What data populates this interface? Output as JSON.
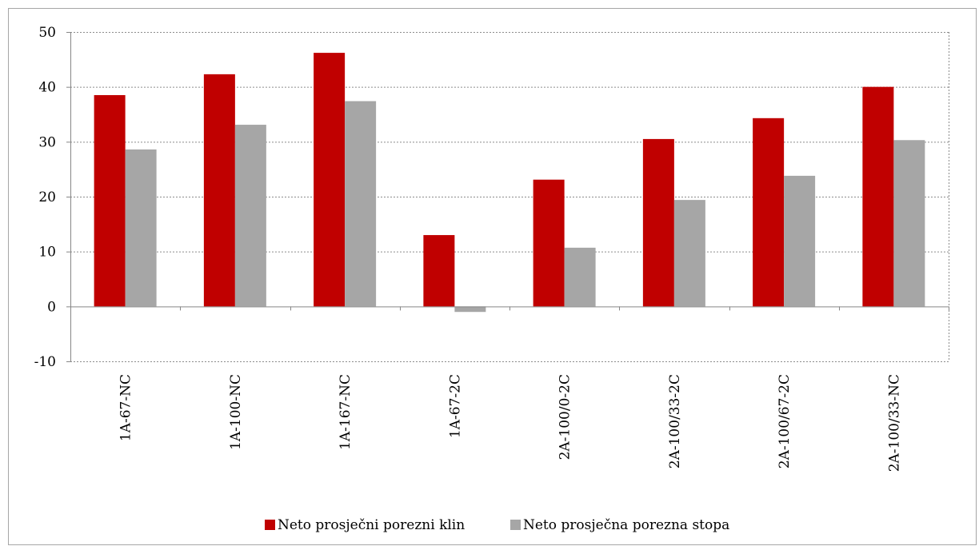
{
  "chart_data": {
    "type": "bar",
    "categories": [
      "1A-67-NC",
      "1A-100-NC",
      "1A-167-NC",
      "1A-67-2C",
      "2A-100/0-2C",
      "2A-100/33-2C",
      "2A-100/67-2C",
      "2A-100/33-NC"
    ],
    "series": [
      {
        "name": "Neto prosječni porezni klin",
        "color": "#c00000",
        "values": [
          38.5,
          42.3,
          46.2,
          13.0,
          23.1,
          30.5,
          34.3,
          40.0
        ]
      },
      {
        "name": "Neto prosječna porezna stopa",
        "color": "#a6a6a6",
        "values": [
          28.6,
          33.1,
          37.4,
          -1.0,
          10.7,
          19.4,
          23.8,
          30.3
        ]
      }
    ],
    "ylim": [
      -10,
      50
    ],
    "yticks": [
      -10,
      0,
      10,
      20,
      30,
      40,
      50
    ],
    "grid": true,
    "legend": "bottom",
    "title": "",
    "xlabel": "",
    "ylabel": ""
  }
}
